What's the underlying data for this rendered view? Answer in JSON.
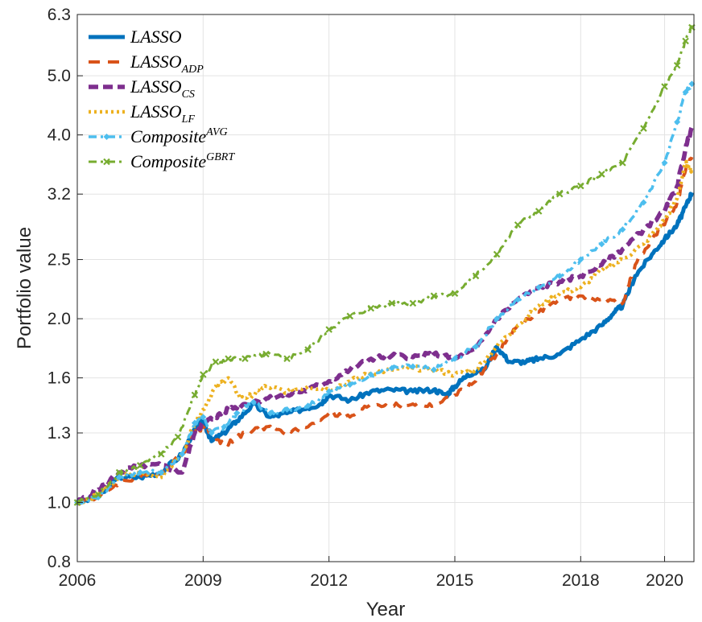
{
  "chart_data": {
    "type": "line",
    "title": "",
    "xlabel": "Year",
    "ylabel": "Portfolio value",
    "xlim": [
      2006.0,
      2020.7
    ],
    "ylim": [
      0.8,
      6.3
    ],
    "y_scale": "log",
    "x_ticks": [
      "2006",
      "2009",
      "2012",
      "2015",
      "2018",
      "2020"
    ],
    "x_tick_values": [
      2006,
      2009,
      2012,
      2015,
      2018,
      2020
    ],
    "y_ticks": [
      "0.8",
      "1.0",
      "1.3",
      "1.6",
      "2.0",
      "2.5",
      "3.2",
      "4.0",
      "5.0",
      "6.3"
    ],
    "y_tick_values": [
      0.8,
      1.0,
      1.3,
      1.6,
      2.0,
      2.5,
      3.2,
      4.0,
      5.0,
      6.3
    ],
    "grid": true,
    "legend_position": "top-left",
    "series": [
      {
        "name": "LASSO",
        "base": "LASSO",
        "sub": "",
        "sup": "",
        "color": "#0072BD",
        "dash": "solid",
        "points": [
          [
            2006.0,
            1.0
          ],
          [
            2006.5,
            1.02
          ],
          [
            2007.0,
            1.1
          ],
          [
            2007.5,
            1.1
          ],
          [
            2008.0,
            1.12
          ],
          [
            2008.5,
            1.2
          ],
          [
            2008.8,
            1.32
          ],
          [
            2009.0,
            1.36
          ],
          [
            2009.2,
            1.26
          ],
          [
            2009.5,
            1.3
          ],
          [
            2009.8,
            1.36
          ],
          [
            2010.2,
            1.45
          ],
          [
            2010.6,
            1.38
          ],
          [
            2011.0,
            1.4
          ],
          [
            2011.5,
            1.43
          ],
          [
            2011.8,
            1.45
          ],
          [
            2012.0,
            1.5
          ],
          [
            2012.5,
            1.47
          ],
          [
            2013.0,
            1.52
          ],
          [
            2013.5,
            1.53
          ],
          [
            2014.0,
            1.52
          ],
          [
            2014.5,
            1.53
          ],
          [
            2014.8,
            1.5
          ],
          [
            2015.0,
            1.55
          ],
          [
            2015.3,
            1.62
          ],
          [
            2015.7,
            1.65
          ],
          [
            2016.0,
            1.8
          ],
          [
            2016.3,
            1.7
          ],
          [
            2016.7,
            1.7
          ],
          [
            2017.0,
            1.72
          ],
          [
            2017.5,
            1.75
          ],
          [
            2018.0,
            1.85
          ],
          [
            2018.5,
            1.95
          ],
          [
            2018.8,
            2.05
          ],
          [
            2019.0,
            2.1
          ],
          [
            2019.3,
            2.35
          ],
          [
            2019.7,
            2.55
          ],
          [
            2020.0,
            2.7
          ],
          [
            2020.3,
            2.85
          ],
          [
            2020.5,
            3.05
          ],
          [
            2020.65,
            3.22
          ]
        ]
      },
      {
        "name": "LASSO_ADP",
        "base": "LASSO",
        "sub": "ADP",
        "sup": "",
        "color": "#D95319",
        "dash": "dashed",
        "points": [
          [
            2006.0,
            1.0
          ],
          [
            2006.5,
            1.02
          ],
          [
            2007.0,
            1.08
          ],
          [
            2007.5,
            1.1
          ],
          [
            2008.0,
            1.12
          ],
          [
            2008.5,
            1.2
          ],
          [
            2008.8,
            1.3
          ],
          [
            2009.0,
            1.33
          ],
          [
            2009.2,
            1.3
          ],
          [
            2009.5,
            1.24
          ],
          [
            2010.0,
            1.3
          ],
          [
            2010.5,
            1.33
          ],
          [
            2011.0,
            1.3
          ],
          [
            2011.5,
            1.33
          ],
          [
            2012.0,
            1.4
          ],
          [
            2012.5,
            1.38
          ],
          [
            2013.0,
            1.45
          ],
          [
            2013.5,
            1.44
          ],
          [
            2014.0,
            1.45
          ],
          [
            2014.5,
            1.44
          ],
          [
            2015.0,
            1.5
          ],
          [
            2015.5,
            1.58
          ],
          [
            2016.0,
            1.75
          ],
          [
            2016.5,
            1.95
          ],
          [
            2017.0,
            2.05
          ],
          [
            2017.5,
            2.15
          ],
          [
            2018.0,
            2.18
          ],
          [
            2018.5,
            2.15
          ],
          [
            2019.0,
            2.12
          ],
          [
            2019.3,
            2.45
          ],
          [
            2019.7,
            2.7
          ],
          [
            2020.0,
            2.85
          ],
          [
            2020.3,
            3.1
          ],
          [
            2020.5,
            3.5
          ],
          [
            2020.65,
            3.68
          ]
        ]
      },
      {
        "name": "LASSO_CS",
        "base": "LASSO",
        "sub": "CS",
        "sup": "",
        "color": "#7E2F8E",
        "dash": "dashed-thick",
        "points": [
          [
            2006.0,
            1.0
          ],
          [
            2006.5,
            1.05
          ],
          [
            2007.0,
            1.12
          ],
          [
            2007.5,
            1.15
          ],
          [
            2008.0,
            1.15
          ],
          [
            2008.5,
            1.12
          ],
          [
            2008.8,
            1.3
          ],
          [
            2009.0,
            1.35
          ],
          [
            2009.3,
            1.38
          ],
          [
            2009.6,
            1.42
          ],
          [
            2010.0,
            1.45
          ],
          [
            2010.5,
            1.48
          ],
          [
            2011.0,
            1.5
          ],
          [
            2011.5,
            1.53
          ],
          [
            2012.0,
            1.58
          ],
          [
            2012.5,
            1.65
          ],
          [
            2013.0,
            1.72
          ],
          [
            2013.5,
            1.74
          ],
          [
            2014.0,
            1.73
          ],
          [
            2014.5,
            1.75
          ],
          [
            2015.0,
            1.72
          ],
          [
            2015.5,
            1.78
          ],
          [
            2016.0,
            2.0
          ],
          [
            2016.5,
            2.15
          ],
          [
            2017.0,
            2.25
          ],
          [
            2017.5,
            2.3
          ],
          [
            2018.0,
            2.35
          ],
          [
            2018.5,
            2.45
          ],
          [
            2019.0,
            2.6
          ],
          [
            2019.5,
            2.8
          ],
          [
            2020.0,
            3.0
          ],
          [
            2020.3,
            3.3
          ],
          [
            2020.5,
            3.8
          ],
          [
            2020.65,
            4.12
          ]
        ]
      },
      {
        "name": "LASSO_LF",
        "base": "LASSO",
        "sub": "LF",
        "sup": "",
        "color": "#EDB120",
        "dash": "dotted",
        "points": [
          [
            2006.0,
            1.0
          ],
          [
            2006.5,
            1.03
          ],
          [
            2007.0,
            1.1
          ],
          [
            2007.5,
            1.12
          ],
          [
            2008.0,
            1.1
          ],
          [
            2008.5,
            1.2
          ],
          [
            2008.8,
            1.35
          ],
          [
            2009.0,
            1.42
          ],
          [
            2009.3,
            1.55
          ],
          [
            2009.6,
            1.6
          ],
          [
            2009.9,
            1.48
          ],
          [
            2010.2,
            1.5
          ],
          [
            2010.5,
            1.55
          ],
          [
            2011.0,
            1.52
          ],
          [
            2011.5,
            1.55
          ],
          [
            2012.0,
            1.53
          ],
          [
            2012.5,
            1.58
          ],
          [
            2013.0,
            1.63
          ],
          [
            2013.5,
            1.65
          ],
          [
            2014.0,
            1.66
          ],
          [
            2014.5,
            1.65
          ],
          [
            2015.0,
            1.62
          ],
          [
            2015.5,
            1.65
          ],
          [
            2016.0,
            1.8
          ],
          [
            2016.5,
            1.95
          ],
          [
            2017.0,
            2.1
          ],
          [
            2017.5,
            2.2
          ],
          [
            2018.0,
            2.25
          ],
          [
            2018.5,
            2.4
          ],
          [
            2019.0,
            2.5
          ],
          [
            2019.5,
            2.65
          ],
          [
            2020.0,
            2.9
          ],
          [
            2020.3,
            3.15
          ],
          [
            2020.5,
            3.6
          ],
          [
            2020.65,
            3.5
          ]
        ]
      },
      {
        "name": "Composite^AVG",
        "base": "Composite",
        "sub": "",
        "sup": "AVG",
        "color": "#4DBEEE",
        "dash": "dash-dot",
        "points": [
          [
            2006.0,
            1.0
          ],
          [
            2006.5,
            1.02
          ],
          [
            2007.0,
            1.1
          ],
          [
            2007.5,
            1.12
          ],
          [
            2008.0,
            1.12
          ],
          [
            2008.5,
            1.2
          ],
          [
            2008.8,
            1.35
          ],
          [
            2009.0,
            1.38
          ],
          [
            2009.2,
            1.3
          ],
          [
            2009.5,
            1.33
          ],
          [
            2009.8,
            1.4
          ],
          [
            2010.2,
            1.46
          ],
          [
            2010.6,
            1.4
          ],
          [
            2011.0,
            1.42
          ],
          [
            2011.5,
            1.44
          ],
          [
            2012.0,
            1.52
          ],
          [
            2012.5,
            1.56
          ],
          [
            2013.0,
            1.62
          ],
          [
            2013.5,
            1.66
          ],
          [
            2014.0,
            1.67
          ],
          [
            2014.5,
            1.65
          ],
          [
            2015.0,
            1.72
          ],
          [
            2015.5,
            1.8
          ],
          [
            2016.0,
            2.0
          ],
          [
            2016.5,
            2.15
          ],
          [
            2017.0,
            2.25
          ],
          [
            2017.5,
            2.35
          ],
          [
            2018.0,
            2.5
          ],
          [
            2018.5,
            2.65
          ],
          [
            2019.0,
            2.8
          ],
          [
            2019.5,
            3.1
          ],
          [
            2020.0,
            3.6
          ],
          [
            2020.3,
            4.2
          ],
          [
            2020.5,
            4.7
          ],
          [
            2020.65,
            4.85
          ]
        ]
      },
      {
        "name": "Composite^GBRT",
        "base": "Composite",
        "sub": "",
        "sup": "GBRT",
        "color": "#77AC30",
        "dash": "dash-dot-x",
        "points": [
          [
            2006.0,
            1.0
          ],
          [
            2006.5,
            1.03
          ],
          [
            2007.0,
            1.12
          ],
          [
            2007.5,
            1.15
          ],
          [
            2008.0,
            1.2
          ],
          [
            2008.4,
            1.28
          ],
          [
            2008.8,
            1.5
          ],
          [
            2009.0,
            1.62
          ],
          [
            2009.3,
            1.7
          ],
          [
            2009.6,
            1.72
          ],
          [
            2010.0,
            1.72
          ],
          [
            2010.5,
            1.75
          ],
          [
            2011.0,
            1.72
          ],
          [
            2011.5,
            1.78
          ],
          [
            2012.0,
            1.92
          ],
          [
            2012.5,
            2.02
          ],
          [
            2013.0,
            2.08
          ],
          [
            2013.5,
            2.12
          ],
          [
            2014.0,
            2.12
          ],
          [
            2014.5,
            2.18
          ],
          [
            2015.0,
            2.2
          ],
          [
            2015.5,
            2.35
          ],
          [
            2016.0,
            2.55
          ],
          [
            2016.5,
            2.85
          ],
          [
            2017.0,
            3.0
          ],
          [
            2017.5,
            3.2
          ],
          [
            2018.0,
            3.3
          ],
          [
            2018.5,
            3.45
          ],
          [
            2019.0,
            3.6
          ],
          [
            2019.5,
            4.1
          ],
          [
            2020.0,
            4.8
          ],
          [
            2020.3,
            5.2
          ],
          [
            2020.5,
            5.7
          ],
          [
            2020.65,
            6.0
          ]
        ]
      }
    ]
  }
}
